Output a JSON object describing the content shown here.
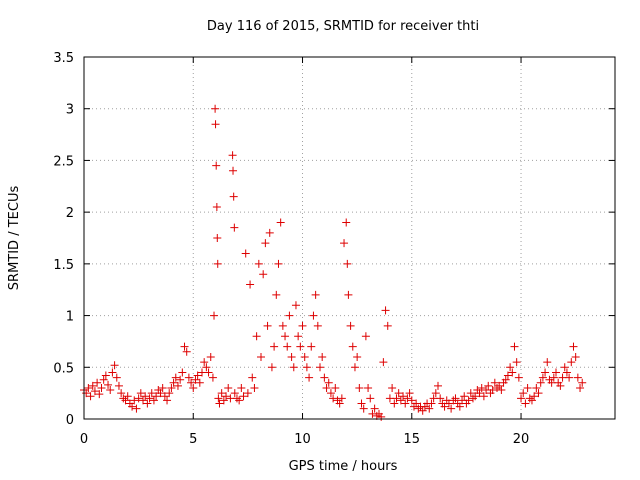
{
  "chart_data": {
    "type": "scatter",
    "title": "Day 116 of 2015, SRMTID for receiver thti",
    "xlabel": "GPS time / hours",
    "ylabel": "SRMTID / TECUs",
    "xlim": [
      0,
      24.3
    ],
    "ylim": [
      0,
      3.5
    ],
    "xticks": [
      0,
      5,
      10,
      15,
      20
    ],
    "xtick_labels": [
      "0",
      "5",
      "10",
      "15",
      "20"
    ],
    "yticks": [
      0,
      0.5,
      1,
      1.5,
      2,
      2.5,
      3,
      3.5
    ],
    "ytick_labels": [
      "0",
      "0.5",
      "1",
      "1.5",
      "2",
      "2.5",
      "3",
      "3.5"
    ],
    "grid": true,
    "marker": "+",
    "color": "#dd0000",
    "series": [
      {
        "name": "SRMTID",
        "points": [
          [
            0.0,
            0.28
          ],
          [
            0.1,
            0.25
          ],
          [
            0.2,
            0.3
          ],
          [
            0.3,
            0.22
          ],
          [
            0.4,
            0.32
          ],
          [
            0.5,
            0.27
          ],
          [
            0.6,
            0.35
          ],
          [
            0.7,
            0.24
          ],
          [
            0.8,
            0.3
          ],
          [
            0.9,
            0.38
          ],
          [
            1.0,
            0.42
          ],
          [
            1.1,
            0.33
          ],
          [
            1.2,
            0.28
          ],
          [
            1.3,
            0.45
          ],
          [
            1.4,
            0.52
          ],
          [
            1.5,
            0.4
          ],
          [
            1.6,
            0.32
          ],
          [
            1.7,
            0.25
          ],
          [
            1.8,
            0.2
          ],
          [
            1.9,
            0.18
          ],
          [
            2.0,
            0.22
          ],
          [
            2.1,
            0.15
          ],
          [
            2.2,
            0.12
          ],
          [
            2.3,
            0.18
          ],
          [
            2.4,
            0.1
          ],
          [
            2.5,
            0.2
          ],
          [
            2.6,
            0.25
          ],
          [
            2.7,
            0.18
          ],
          [
            2.8,
            0.22
          ],
          [
            2.9,
            0.15
          ],
          [
            3.0,
            0.2
          ],
          [
            3.1,
            0.25
          ],
          [
            3.2,
            0.18
          ],
          [
            3.3,
            0.22
          ],
          [
            3.4,
            0.28
          ],
          [
            3.5,
            0.25
          ],
          [
            3.6,
            0.3
          ],
          [
            3.7,
            0.22
          ],
          [
            3.8,
            0.18
          ],
          [
            3.9,
            0.25
          ],
          [
            4.0,
            0.3
          ],
          [
            4.1,
            0.35
          ],
          [
            4.2,
            0.4
          ],
          [
            4.3,
            0.32
          ],
          [
            4.4,
            0.38
          ],
          [
            4.5,
            0.45
          ],
          [
            4.6,
            0.7
          ],
          [
            4.7,
            0.65
          ],
          [
            4.8,
            0.4
          ],
          [
            4.9,
            0.35
          ],
          [
            5.0,
            0.3
          ],
          [
            5.1,
            0.38
          ],
          [
            5.2,
            0.42
          ],
          [
            5.3,
            0.35
          ],
          [
            5.4,
            0.45
          ],
          [
            5.5,
            0.55
          ],
          [
            5.6,
            0.5
          ],
          [
            5.7,
            0.45
          ],
          [
            5.8,
            0.6
          ],
          [
            5.9,
            0.4
          ],
          [
            5.95,
            1.0
          ],
          [
            6.0,
            3.0
          ],
          [
            6.02,
            2.85
          ],
          [
            6.05,
            2.45
          ],
          [
            6.08,
            2.05
          ],
          [
            6.1,
            1.75
          ],
          [
            6.12,
            1.5
          ],
          [
            6.15,
            0.2
          ],
          [
            6.2,
            0.15
          ],
          [
            6.3,
            0.25
          ],
          [
            6.4,
            0.18
          ],
          [
            6.5,
            0.22
          ],
          [
            6.6,
            0.3
          ],
          [
            6.7,
            0.2
          ],
          [
            6.8,
            2.55
          ],
          [
            6.82,
            2.4
          ],
          [
            6.85,
            2.15
          ],
          [
            6.88,
            1.85
          ],
          [
            6.9,
            0.25
          ],
          [
            7.0,
            0.2
          ],
          [
            7.1,
            0.18
          ],
          [
            7.2,
            0.3
          ],
          [
            7.3,
            0.22
          ],
          [
            7.4,
            1.6
          ],
          [
            7.5,
            0.25
          ],
          [
            7.6,
            1.3
          ],
          [
            7.7,
            0.4
          ],
          [
            7.8,
            0.3
          ],
          [
            7.9,
            0.8
          ],
          [
            8.0,
            1.5
          ],
          [
            8.1,
            0.6
          ],
          [
            8.2,
            1.4
          ],
          [
            8.3,
            1.7
          ],
          [
            8.4,
            0.9
          ],
          [
            8.5,
            1.8
          ],
          [
            8.6,
            0.5
          ],
          [
            8.7,
            0.7
          ],
          [
            8.8,
            1.2
          ],
          [
            8.9,
            1.5
          ],
          [
            9.0,
            1.9
          ],
          [
            9.1,
            0.9
          ],
          [
            9.2,
            0.8
          ],
          [
            9.3,
            0.7
          ],
          [
            9.4,
            1.0
          ],
          [
            9.5,
            0.6
          ],
          [
            9.6,
            0.5
          ],
          [
            9.7,
            1.1
          ],
          [
            9.8,
            0.8
          ],
          [
            9.9,
            0.7
          ],
          [
            10.0,
            0.9
          ],
          [
            10.1,
            0.6
          ],
          [
            10.2,
            0.5
          ],
          [
            10.3,
            0.4
          ],
          [
            10.4,
            0.7
          ],
          [
            10.5,
            1.0
          ],
          [
            10.6,
            1.2
          ],
          [
            10.7,
            0.9
          ],
          [
            10.8,
            0.5
          ],
          [
            10.9,
            0.6
          ],
          [
            11.0,
            0.4
          ],
          [
            11.1,
            0.3
          ],
          [
            11.2,
            0.35
          ],
          [
            11.3,
            0.25
          ],
          [
            11.4,
            0.2
          ],
          [
            11.5,
            0.3
          ],
          [
            11.6,
            0.18
          ],
          [
            11.7,
            0.15
          ],
          [
            11.8,
            0.2
          ],
          [
            11.9,
            1.7
          ],
          [
            12.0,
            1.9
          ],
          [
            12.05,
            1.5
          ],
          [
            12.1,
            1.2
          ],
          [
            12.2,
            0.9
          ],
          [
            12.3,
            0.7
          ],
          [
            12.4,
            0.5
          ],
          [
            12.5,
            0.6
          ],
          [
            12.6,
            0.3
          ],
          [
            12.7,
            0.15
          ],
          [
            12.8,
            0.1
          ],
          [
            12.9,
            0.8
          ],
          [
            13.0,
            0.3
          ],
          [
            13.1,
            0.2
          ],
          [
            13.2,
            0.05
          ],
          [
            13.3,
            0.1
          ],
          [
            13.4,
            0.03
          ],
          [
            13.5,
            0.05
          ],
          [
            13.6,
            0.02
          ],
          [
            13.7,
            0.55
          ],
          [
            13.8,
            1.05
          ],
          [
            13.9,
            0.9
          ],
          [
            14.0,
            0.2
          ],
          [
            14.1,
            0.3
          ],
          [
            14.2,
            0.15
          ],
          [
            14.3,
            0.2
          ],
          [
            14.4,
            0.25
          ],
          [
            14.5,
            0.18
          ],
          [
            14.6,
            0.22
          ],
          [
            14.7,
            0.15
          ],
          [
            14.8,
            0.2
          ],
          [
            14.9,
            0.25
          ],
          [
            15.0,
            0.18
          ],
          [
            15.1,
            0.12
          ],
          [
            15.2,
            0.15
          ],
          [
            15.3,
            0.1
          ],
          [
            15.4,
            0.12
          ],
          [
            15.5,
            0.08
          ],
          [
            15.6,
            0.12
          ],
          [
            15.7,
            0.15
          ],
          [
            15.8,
            0.1
          ],
          [
            15.9,
            0.15
          ],
          [
            16.0,
            0.2
          ],
          [
            16.1,
            0.25
          ],
          [
            16.2,
            0.32
          ],
          [
            16.3,
            0.2
          ],
          [
            16.4,
            0.15
          ],
          [
            16.5,
            0.12
          ],
          [
            16.6,
            0.18
          ],
          [
            16.7,
            0.15
          ],
          [
            16.8,
            0.1
          ],
          [
            16.9,
            0.18
          ],
          [
            17.0,
            0.2
          ],
          [
            17.1,
            0.15
          ],
          [
            17.2,
            0.12
          ],
          [
            17.3,
            0.18
          ],
          [
            17.4,
            0.22
          ],
          [
            17.5,
            0.15
          ],
          [
            17.6,
            0.18
          ],
          [
            17.7,
            0.25
          ],
          [
            17.8,
            0.2
          ],
          [
            17.9,
            0.22
          ],
          [
            18.0,
            0.28
          ],
          [
            18.1,
            0.25
          ],
          [
            18.2,
            0.3
          ],
          [
            18.3,
            0.22
          ],
          [
            18.4,
            0.28
          ],
          [
            18.5,
            0.32
          ],
          [
            18.6,
            0.25
          ],
          [
            18.7,
            0.28
          ],
          [
            18.8,
            0.35
          ],
          [
            18.9,
            0.3
          ],
          [
            19.0,
            0.32
          ],
          [
            19.1,
            0.28
          ],
          [
            19.2,
            0.35
          ],
          [
            19.3,
            0.38
          ],
          [
            19.4,
            0.42
          ],
          [
            19.5,
            0.5
          ],
          [
            19.6,
            0.45
          ],
          [
            19.7,
            0.7
          ],
          [
            19.8,
            0.55
          ],
          [
            19.9,
            0.4
          ],
          [
            20.0,
            0.2
          ],
          [
            20.1,
            0.25
          ],
          [
            20.2,
            0.15
          ],
          [
            20.3,
            0.3
          ],
          [
            20.4,
            0.2
          ],
          [
            20.5,
            0.18
          ],
          [
            20.6,
            0.22
          ],
          [
            20.7,
            0.3
          ],
          [
            20.8,
            0.25
          ],
          [
            20.9,
            0.35
          ],
          [
            21.0,
            0.4
          ],
          [
            21.1,
            0.45
          ],
          [
            21.2,
            0.55
          ],
          [
            21.3,
            0.38
          ],
          [
            21.4,
            0.35
          ],
          [
            21.5,
            0.4
          ],
          [
            21.6,
            0.45
          ],
          [
            21.7,
            0.35
          ],
          [
            21.8,
            0.32
          ],
          [
            21.9,
            0.4
          ],
          [
            22.0,
            0.5
          ],
          [
            22.1,
            0.45
          ],
          [
            22.2,
            0.4
          ],
          [
            22.3,
            0.55
          ],
          [
            22.4,
            0.7
          ],
          [
            22.5,
            0.6
          ],
          [
            22.6,
            0.4
          ],
          [
            22.7,
            0.3
          ],
          [
            22.8,
            0.35
          ]
        ]
      }
    ]
  }
}
